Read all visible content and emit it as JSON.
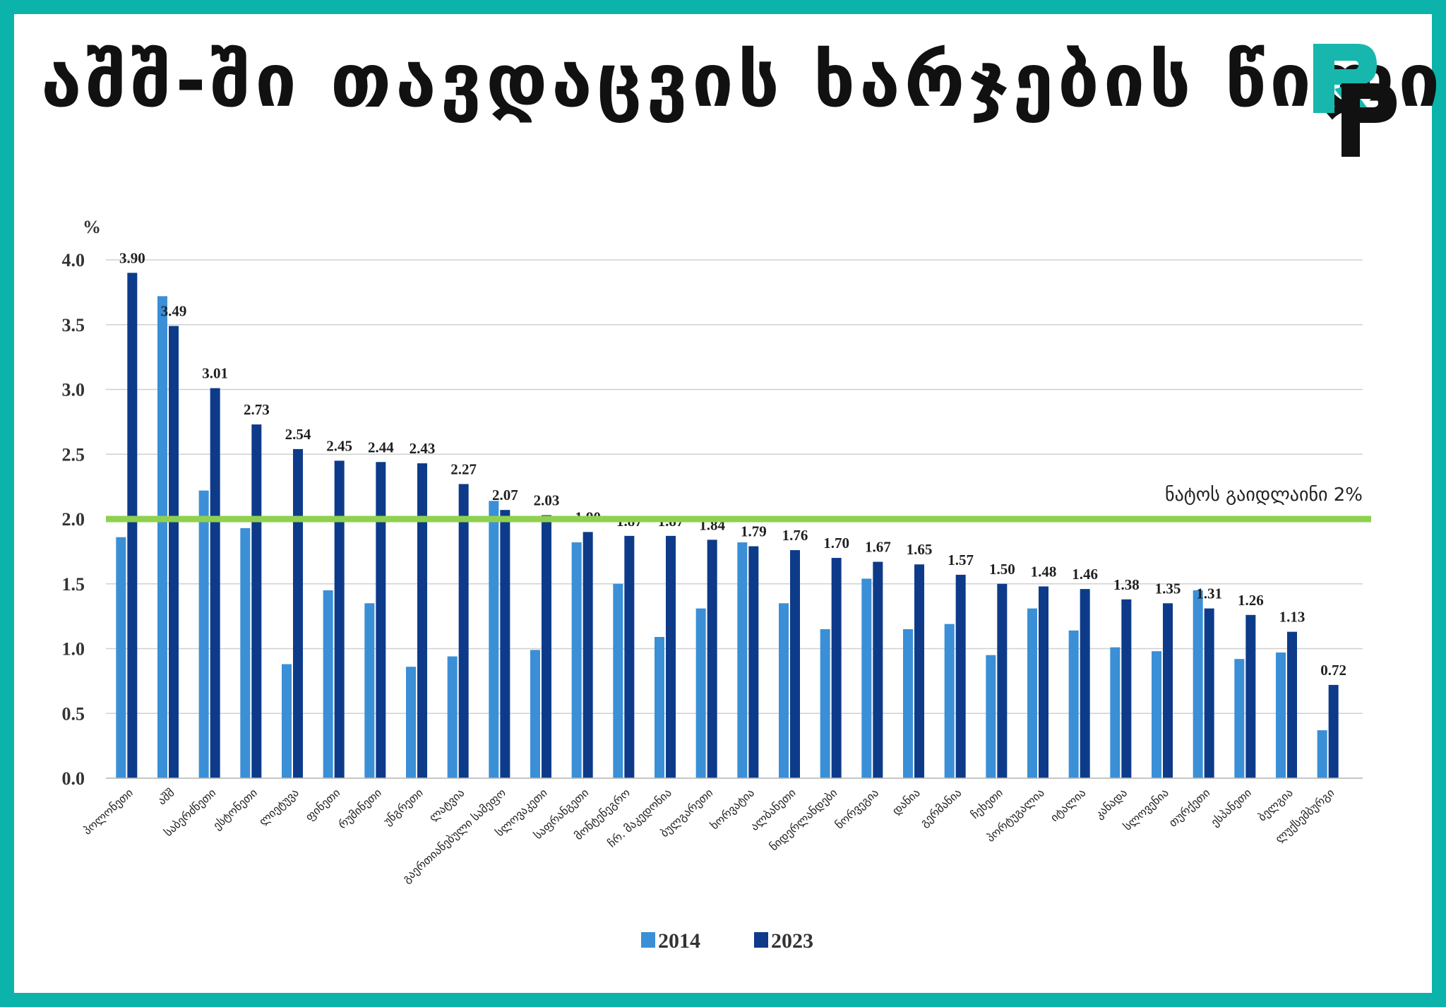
{
  "header": {
    "title": "აშშ-ში თავდაცვის ხარჯების წილი"
  },
  "logo": {
    "colors": {
      "teal": "#18b7ae",
      "dark": "#111111"
    }
  },
  "colors": {
    "series_2014": "#3b8fd6",
    "series_2023": "#0d3b8a",
    "guideline": "#8fd14f",
    "grid": "#d0d0d0",
    "label_text": "#1f1f1f"
  },
  "chart_data": {
    "type": "bar",
    "ylabel": "%",
    "ylim": [
      0,
      4.0
    ],
    "yticks": [
      "0.0",
      "0.5",
      "1.0",
      "1.5",
      "2.0",
      "2.5",
      "3.0",
      "3.5",
      "4.0"
    ],
    "grid": true,
    "legend_position": "bottom",
    "categories": [
      "პოლონეთი",
      "აშშ",
      "საბერძნეთი",
      "ესტონეთი",
      "ლიეტუვა",
      "ფინეთი",
      "რუმინეთი",
      "უნგრეთი",
      "ლატვია",
      "გაერთიანებული სამეფო",
      "სლოვაკეთი",
      "საფრანგეთი",
      "მონტენეგრო",
      "ჩრ. მაკედონია",
      "ბულგარეთი",
      "ხორვატია",
      "ალბანეთი",
      "ნიდერლანდები",
      "ნორვეგია",
      "დანია",
      "გერმანია",
      "ჩეხეთი",
      "პორტუგალია",
      "იტალია",
      "კანადა",
      "სლოვენია",
      "თურქეთი",
      "ესპანეთი",
      "ბელგია",
      "ლუქსემბურგი"
    ],
    "series": [
      {
        "name": "2014",
        "values": [
          1.86,
          3.72,
          2.22,
          1.93,
          0.88,
          1.45,
          1.35,
          0.86,
          0.94,
          2.14,
          0.99,
          1.82,
          1.5,
          1.09,
          1.31,
          1.82,
          1.35,
          1.15,
          1.54,
          1.15,
          1.19,
          0.95,
          1.31,
          1.14,
          1.01,
          0.98,
          1.45,
          0.92,
          0.97,
          0.37
        ]
      },
      {
        "name": "2023",
        "values": [
          3.9,
          3.49,
          3.01,
          2.73,
          2.54,
          2.45,
          2.44,
          2.43,
          2.27,
          2.07,
          2.03,
          1.9,
          1.87,
          1.87,
          1.84,
          1.79,
          1.76,
          1.7,
          1.67,
          1.65,
          1.57,
          1.5,
          1.48,
          1.46,
          1.38,
          1.35,
          1.31,
          1.26,
          1.13,
          0.72
        ]
      }
    ],
    "data_labels": [
      "3.90",
      "3.49",
      "3.01",
      "2.73",
      "2.54",
      "2.45",
      "2.44",
      "2.43",
      "2.27",
      "2.07",
      "2.03",
      "1.90",
      "1.87",
      "1.87",
      "1.84",
      "1.79",
      "1.76",
      "1.70",
      "1.67",
      "1.65",
      "1.57",
      "1.50",
      "1.48",
      "1.46",
      "1.38",
      "1.35",
      "1.31",
      "1.26",
      "1.13",
      "0.72"
    ],
    "reference_line": {
      "value": 2.0,
      "label": "ნატოს გაიდლაინი 2%"
    },
    "legend": [
      "2014",
      "2023"
    ]
  }
}
